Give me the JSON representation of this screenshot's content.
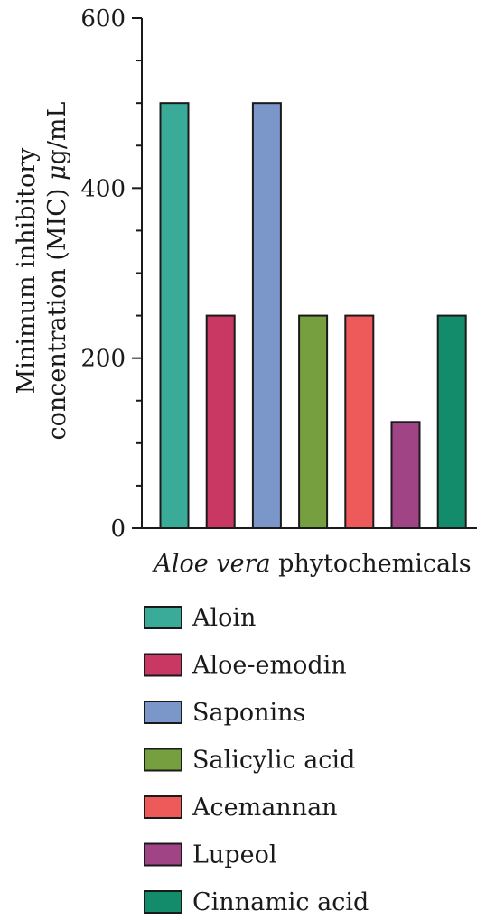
{
  "chart_data": {
    "type": "bar",
    "categories": [
      "Aloin",
      "Aloe-emodin",
      "Saponins",
      "Salicylic acid",
      "Acemannan",
      "Lupeol",
      "Cinnamic acid"
    ],
    "values": [
      500,
      250,
      500,
      250,
      250,
      125,
      250
    ],
    "colors": [
      "#3aab99",
      "#c93862",
      "#7b96c8",
      "#76a03f",
      "#ee5959",
      "#a14486",
      "#138c6b"
    ],
    "xlabel_italic": "Aloe vera",
    "xlabel_rest": "phytochemicals",
    "ylabel_line1": "Minimum inhibitory",
    "ylabel_line2_prefix": "concentration (MIC) ",
    "ylabel_line2_unit_mu": "μ",
    "ylabel_line2_unit_rest": "g/mL",
    "ylim": [
      0,
      600
    ],
    "yticks": [
      0,
      200,
      400,
      600
    ],
    "grid": false,
    "legend_position": "bottom"
  }
}
